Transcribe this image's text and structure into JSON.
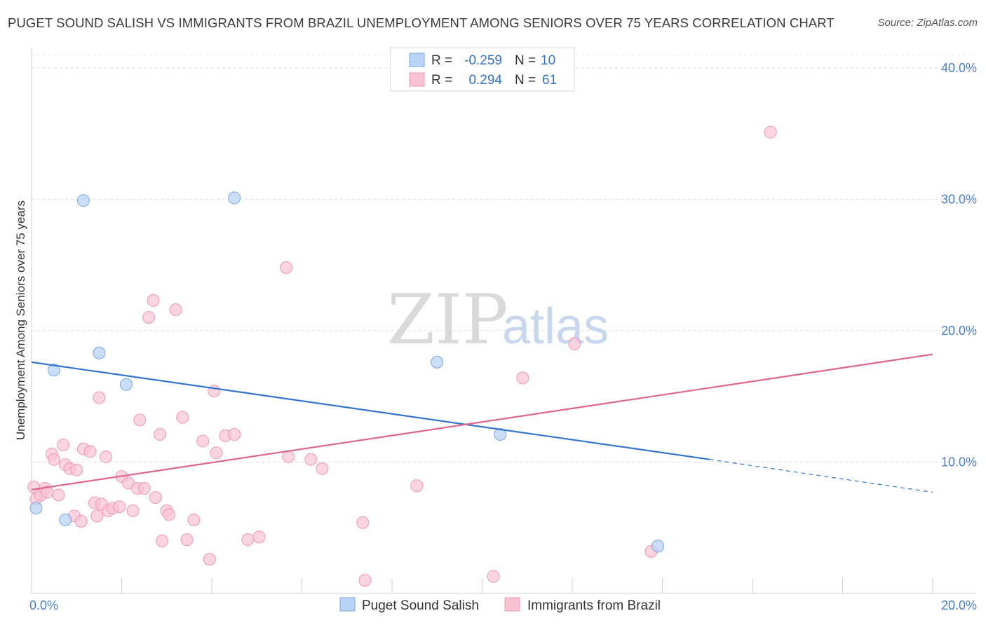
{
  "title": "PUGET SOUND SALISH VS IMMIGRANTS FROM BRAZIL UNEMPLOYMENT AMONG SENIORS OVER 75 YEARS CORRELATION CHART",
  "source": "Source: ZipAtlas.com",
  "watermark": {
    "part1": "ZIP",
    "part2": "atlas"
  },
  "legend": {
    "rows": [
      {
        "r_label": "R =",
        "r_value": "-0.259",
        "n_label": "N =",
        "n_value": "10"
      },
      {
        "r_label": "R =",
        "r_value": "0.294",
        "n_label": "N =",
        "n_value": "61"
      }
    ]
  },
  "bottom_legend": [
    "Puget Sound Salish",
    "Immigrants from Brazil"
  ],
  "colors": {
    "salish_fill": "#b8d3f5",
    "salish_stroke": "#7aa6e0",
    "salish_line": "#3473d0",
    "brazil_fill": "#f8c2d3",
    "brazil_stroke": "#ee97b4",
    "brazil_line": "#e0648e",
    "tick_label": "#4a7fc8"
  },
  "chart_data": {
    "type": "scatter",
    "xlabel": "",
    "ylabel": "Unemployment Among Seniors over 75 years",
    "xlim": [
      0,
      20
    ],
    "ylim": [
      0,
      41
    ],
    "x_tick_labels": [
      "0.0%",
      "20.0%"
    ],
    "y_ticks": [
      10,
      20,
      30,
      40
    ],
    "y_tick_labels": [
      "10.0%",
      "20.0%",
      "30.0%",
      "40.0%"
    ],
    "grid": "horizontal dashed",
    "legend_position": "top-center",
    "series": [
      {
        "name": "Puget Sound Salish",
        "r": -0.259,
        "n": 10,
        "points": [
          [
            0.1,
            6.5
          ],
          [
            0.5,
            17.0
          ],
          [
            0.75,
            5.6
          ],
          [
            1.15,
            29.9
          ],
          [
            1.5,
            18.3
          ],
          [
            2.1,
            15.9
          ],
          [
            4.5,
            30.1
          ],
          [
            9.0,
            17.6
          ],
          [
            10.4,
            12.1
          ],
          [
            13.9,
            3.6
          ]
        ],
        "trend": {
          "x0": 0,
          "y0": 17.6,
          "x1": 15.05,
          "y1": 10.2,
          "dash_x1": 20,
          "dash_y1": 7.7
        }
      },
      {
        "name": "Immigrants from Brazil",
        "r": 0.294,
        "n": 61,
        "points": [
          [
            0.05,
            8.1
          ],
          [
            0.1,
            7.2
          ],
          [
            0.2,
            7.5
          ],
          [
            0.3,
            8.0
          ],
          [
            0.35,
            7.7
          ],
          [
            0.45,
            10.6
          ],
          [
            0.5,
            10.2
          ],
          [
            0.6,
            7.5
          ],
          [
            0.7,
            11.3
          ],
          [
            0.75,
            9.8
          ],
          [
            0.85,
            9.5
          ],
          [
            0.95,
            5.9
          ],
          [
            1.0,
            9.4
          ],
          [
            1.1,
            5.5
          ],
          [
            1.15,
            11.0
          ],
          [
            1.3,
            10.8
          ],
          [
            1.4,
            6.9
          ],
          [
            1.45,
            5.9
          ],
          [
            1.5,
            14.9
          ],
          [
            1.55,
            6.8
          ],
          [
            1.65,
            10.4
          ],
          [
            1.7,
            6.3
          ],
          [
            1.8,
            6.5
          ],
          [
            1.95,
            6.6
          ],
          [
            2.0,
            8.9
          ],
          [
            2.15,
            8.4
          ],
          [
            2.25,
            6.3
          ],
          [
            2.35,
            8.0
          ],
          [
            2.4,
            13.2
          ],
          [
            2.5,
            8.0
          ],
          [
            2.6,
            21.0
          ],
          [
            2.7,
            22.3
          ],
          [
            2.75,
            7.3
          ],
          [
            2.85,
            12.1
          ],
          [
            2.9,
            4.0
          ],
          [
            3.0,
            6.3
          ],
          [
            3.05,
            6.0
          ],
          [
            3.2,
            21.6
          ],
          [
            3.35,
            13.4
          ],
          [
            3.45,
            4.1
          ],
          [
            3.6,
            5.6
          ],
          [
            3.8,
            11.6
          ],
          [
            3.95,
            2.6
          ],
          [
            4.05,
            15.4
          ],
          [
            4.1,
            10.7
          ],
          [
            4.3,
            12.0
          ],
          [
            4.5,
            12.1
          ],
          [
            4.8,
            4.1
          ],
          [
            5.05,
            4.3
          ],
          [
            5.65,
            24.8
          ],
          [
            5.7,
            10.4
          ],
          [
            6.2,
            10.2
          ],
          [
            6.45,
            9.5
          ],
          [
            7.35,
            5.4
          ],
          [
            7.4,
            1.0
          ],
          [
            8.55,
            8.2
          ],
          [
            10.25,
            1.3
          ],
          [
            10.9,
            16.4
          ],
          [
            12.05,
            19.0
          ],
          [
            13.75,
            3.2
          ],
          [
            16.4,
            35.1
          ]
        ],
        "trend": {
          "x0": 0,
          "y0": 7.9,
          "x1": 20,
          "y1": 18.2
        }
      }
    ]
  }
}
